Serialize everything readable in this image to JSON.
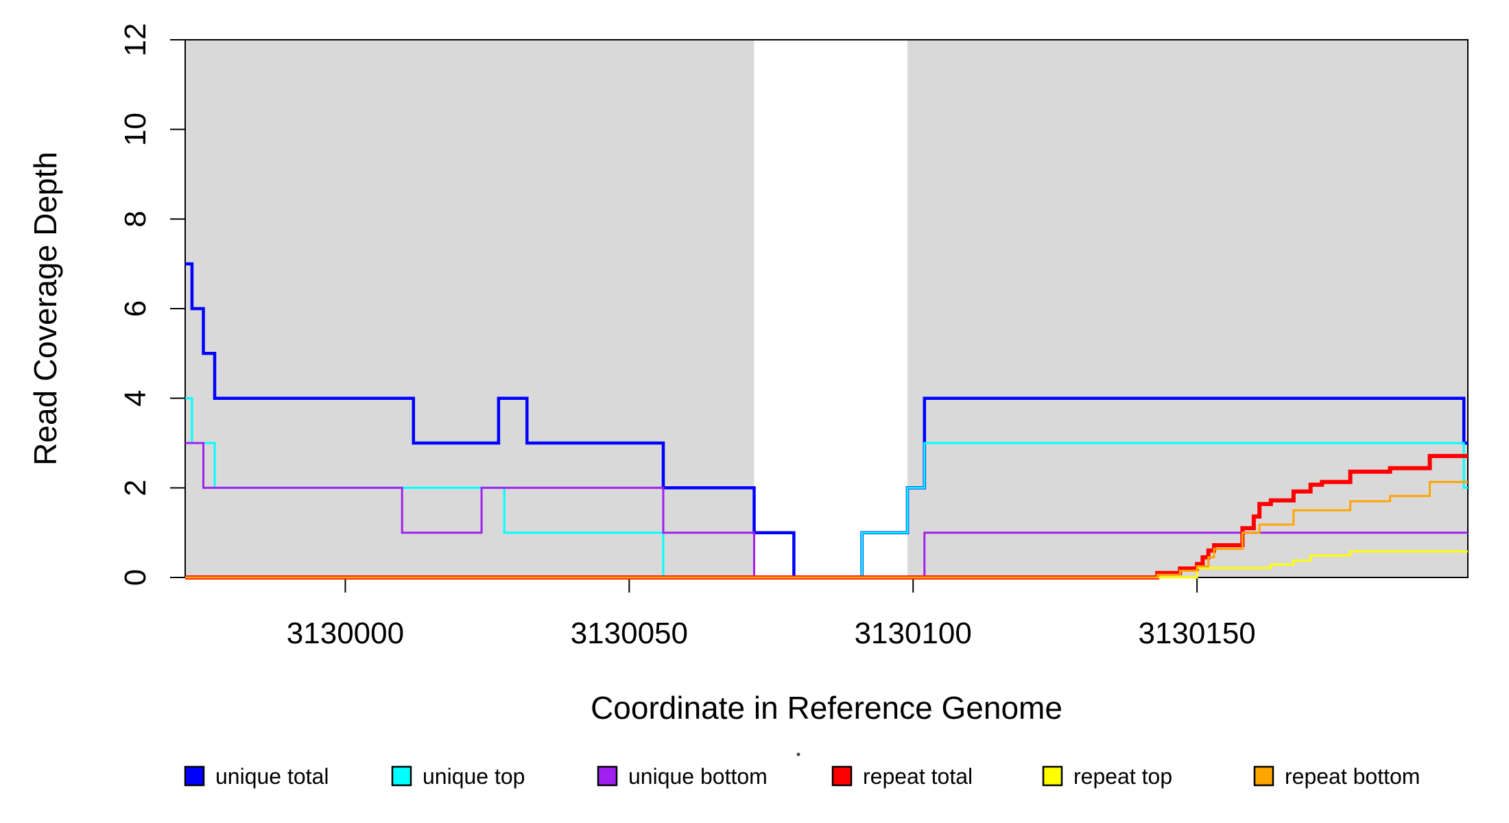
{
  "figure": {
    "xlabel": "Coordinate in Reference Genome",
    "ylabel": "Read Coverage Depth"
  },
  "chart_data": {
    "type": "line",
    "step": "after",
    "title": "",
    "xlabel": "Coordinate in Reference Genome",
    "ylabel": "Read Coverage Depth",
    "xlim": [
      3129971.8,
      3130197.7
    ],
    "ylim": [
      0,
      12
    ],
    "x_ticks": [
      3130000,
      3130050,
      3130100,
      3130150
    ],
    "y_ticks": [
      0,
      2,
      4,
      6,
      8,
      10,
      12
    ],
    "grid": false,
    "background": "#FFFFFF",
    "shaded_regions": [
      {
        "from": 3129971.8,
        "to": 3130072,
        "color": "#D9D9D9"
      },
      {
        "from": 3130099,
        "to": 3130197.7,
        "color": "#D9D9D9"
      }
    ],
    "legend_position": "bottom",
    "legend": {
      "items": [
        {
          "label": "unique total",
          "color": "#0000FF"
        },
        {
          "label": "unique top",
          "color": "#00FFFF"
        },
        {
          "label": "unique bottom",
          "color": "#A020F0"
        },
        {
          "label": "repeat total",
          "color": "#FF0000"
        },
        {
          "label": "repeat top",
          "color": "#FFFF00"
        },
        {
          "label": "repeat bottom",
          "color": "#FFA500"
        }
      ]
    },
    "series": [
      {
        "name": "unique total",
        "color": "#0000FF",
        "width": 4.5,
        "points": [
          [
            3129971.8,
            7
          ],
          [
            3129973,
            6
          ],
          [
            3129975,
            5
          ],
          [
            3129977,
            4
          ],
          [
            3130012,
            3
          ],
          [
            3130027,
            4
          ],
          [
            3130032,
            3
          ],
          [
            3130056,
            2
          ],
          [
            3130072,
            1
          ],
          [
            3130079,
            0
          ],
          [
            3130091,
            1
          ],
          [
            3130099,
            2
          ],
          [
            3130102,
            4
          ],
          [
            3130197,
            3
          ]
        ]
      },
      {
        "name": "unique top",
        "color": "#00FFFF",
        "width": 3,
        "points": [
          [
            3129971.8,
            4
          ],
          [
            3129973,
            3
          ],
          [
            3129977,
            2
          ],
          [
            3130028,
            1
          ],
          [
            3130056,
            0
          ],
          [
            3130091,
            1
          ],
          [
            3130099,
            2
          ],
          [
            3130102,
            3
          ],
          [
            3130197,
            2
          ]
        ]
      },
      {
        "name": "unique bottom",
        "color": "#A020F0",
        "width": 3,
        "points": [
          [
            3129971.8,
            3
          ],
          [
            3129975,
            2
          ],
          [
            3130010,
            1
          ],
          [
            3130024,
            2
          ],
          [
            3130056,
            1
          ],
          [
            3130072,
            0
          ],
          [
            3130102,
            1
          ]
        ]
      },
      {
        "name": "repeat total",
        "color": "#FF0000",
        "width": 6,
        "points": [
          [
            3129971.8,
            0
          ],
          [
            3130143,
            0.1
          ],
          [
            3130147,
            0.2
          ],
          [
            3130150,
            0.3
          ],
          [
            3130151,
            0.45
          ],
          [
            3130152,
            0.6
          ],
          [
            3130153,
            0.72
          ],
          [
            3130158,
            1.1
          ],
          [
            3130160,
            1.36
          ],
          [
            3130161,
            1.64
          ],
          [
            3130163,
            1.72
          ],
          [
            3130167,
            1.92
          ],
          [
            3130170,
            2.07
          ],
          [
            3130172,
            2.13
          ],
          [
            3130177,
            2.36
          ],
          [
            3130184,
            2.44
          ],
          [
            3130191,
            2.71
          ]
        ]
      },
      {
        "name": "repeat top",
        "color": "#FFFF00",
        "width": 3,
        "points": [
          [
            3129971.8,
            0
          ],
          [
            3130150,
            0.21
          ],
          [
            3130163,
            0.29
          ],
          [
            3130167,
            0.38
          ],
          [
            3130170,
            0.49
          ],
          [
            3130177,
            0.58
          ]
        ]
      },
      {
        "name": "repeat bottom",
        "color": "#FFA500",
        "width": 3,
        "points": [
          [
            3129971.8,
            0
          ],
          [
            3130143,
            0.06
          ],
          [
            3130147,
            0.15
          ],
          [
            3130150,
            0.25
          ],
          [
            3130152,
            0.45
          ],
          [
            3130153,
            0.64
          ],
          [
            3130158,
            1.0
          ],
          [
            3130161,
            1.18
          ],
          [
            3130167,
            1.5
          ],
          [
            3130177,
            1.7
          ],
          [
            3130184,
            1.82
          ],
          [
            3130191,
            2.13
          ]
        ]
      }
    ]
  }
}
